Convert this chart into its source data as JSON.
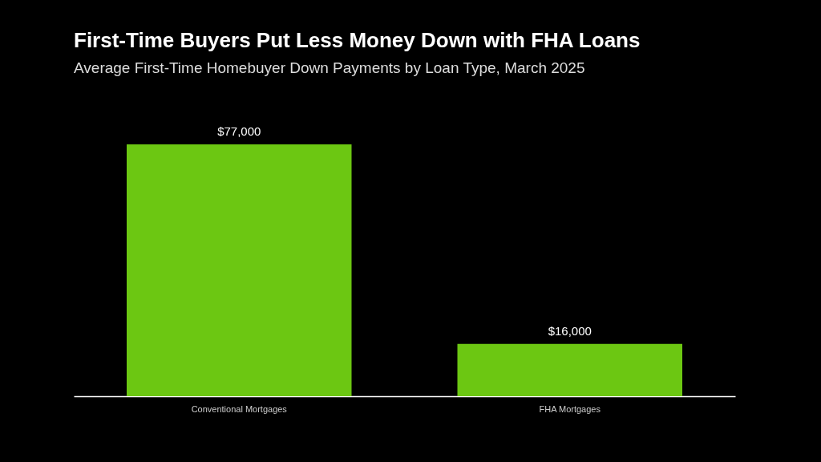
{
  "chart_data": {
    "type": "bar",
    "title": "First-Time Buyers Put Less Money Down with FHA Loans",
    "subtitle": "Average First-Time Homebuyer Down Payments by Loan Type, March 2025",
    "categories": [
      "Conventional Mortgages",
      "FHA Mortgages"
    ],
    "values": [
      77000,
      16000
    ],
    "value_labels": [
      "$77,000",
      "$16,000"
    ],
    "color": "#6cc712",
    "grid": false
  }
}
